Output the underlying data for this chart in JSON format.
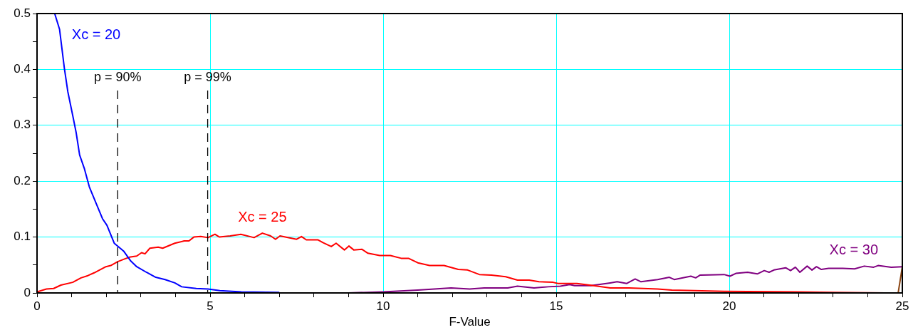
{
  "chart_data": {
    "type": "line",
    "xlabel": "F-Value",
    "xlim": [
      0,
      25
    ],
    "ylim": [
      0,
      0.5
    ],
    "xticks": [
      0,
      {
        "value": 1,
        "label": null
      },
      {
        "value": 2,
        "label": null
      },
      {
        "value": 3,
        "label": null
      },
      {
        "value": 4,
        "label": null
      },
      5,
      {
        "value": 6,
        "label": null
      },
      {
        "value": 7,
        "label": null
      },
      {
        "value": 8,
        "label": null
      },
      {
        "value": 9,
        "label": null
      },
      10,
      {
        "value": 11,
        "label": null
      },
      {
        "value": 12,
        "label": null
      },
      {
        "value": 13,
        "label": null
      },
      {
        "value": 14,
        "label": null
      },
      15,
      {
        "value": 16,
        "label": null
      },
      {
        "value": 17,
        "label": null
      },
      {
        "value": 18,
        "label": null
      },
      {
        "value": 19,
        "label": null
      },
      20,
      {
        "value": 21,
        "label": null
      },
      {
        "value": 22,
        "label": null
      },
      {
        "value": 23,
        "label": null
      },
      {
        "value": 24,
        "label": null
      },
      25
    ],
    "yticks": [
      0,
      {
        "value": 0.05,
        "label": null
      },
      0.1,
      {
        "value": 0.15,
        "label": null
      },
      0.2,
      {
        "value": 0.25,
        "label": null
      },
      0.3,
      {
        "value": 0.35,
        "label": null
      },
      0.4,
      {
        "value": 0.45,
        "label": null
      },
      0.5
    ],
    "grid": true,
    "legend": false,
    "marker": "none",
    "line_style": "solid",
    "ref_lines": [
      {
        "axis": "x",
        "value": 2.33,
        "color": "#000000",
        "line_style": "dashed"
      },
      {
        "axis": "x",
        "value": 4.93,
        "color": "#000000",
        "line_style": "dashed"
      }
    ],
    "annotations": [
      "p = 90%",
      "p = 99%"
    ],
    "series": [
      {
        "name": "Xc = 20",
        "color": "#0000ff",
        "x": [
          0.51,
          0.65,
          0.79,
          0.89,
          1.03,
          1.13,
          1.23,
          1.37,
          1.51,
          1.71,
          1.89,
          2.02,
          2.23,
          2.5,
          2.71,
          2.88,
          3.16,
          3.43,
          3.7,
          3.98,
          4.18,
          4.6,
          4.94,
          5.28,
          5.9,
          7
        ],
        "values": [
          0.5,
          0.472,
          0.402,
          0.36,
          0.318,
          0.287,
          0.247,
          0.222,
          0.19,
          0.16,
          0.133,
          0.121,
          0.089,
          0.075,
          0.057,
          0.047,
          0.037,
          0.028,
          0.024,
          0.018,
          0.011,
          0.008,
          0.007,
          0.004,
          0.002,
          0.001
        ]
      },
      {
        "name": "Xc = 25",
        "color": "#ff0000",
        "x": [
          0,
          0.27,
          0.48,
          0.69,
          1.03,
          1.27,
          1.47,
          1.65,
          1.99,
          2.13,
          2.33,
          2.54,
          2.67,
          2.88,
          3.02,
          3.12,
          3.26,
          3.5,
          3.63,
          3.98,
          4.25,
          4.39,
          4.53,
          4.73,
          4.94,
          5.14,
          5.27,
          5.58,
          5.89,
          6.27,
          6.51,
          6.75,
          6.89,
          7.02,
          7.5,
          7.64,
          7.78,
          8.12,
          8.26,
          8.5,
          8.64,
          8.88,
          9.01,
          9.15,
          9.39,
          9.56,
          9.9,
          10.21,
          10.52,
          10.73,
          11,
          11.34,
          11.76,
          12.17,
          12.44,
          12.78,
          13.13,
          13.54,
          13.88,
          14.22,
          14.5,
          14.91,
          15.05,
          15.6,
          16.08,
          16.56,
          17.1,
          17.93,
          18.34,
          19.85,
          21.9,
          23,
          24.5
        ],
        "values": [
          0.002,
          0.007,
          0.008,
          0.014,
          0.019,
          0.027,
          0.031,
          0.036,
          0.047,
          0.049,
          0.056,
          0.061,
          0.064,
          0.066,
          0.072,
          0.07,
          0.08,
          0.082,
          0.08,
          0.089,
          0.093,
          0.093,
          0.1,
          0.101,
          0.099,
          0.105,
          0.1,
          0.102,
          0.105,
          0.099,
          0.107,
          0.102,
          0.096,
          0.102,
          0.096,
          0.101,
          0.095,
          0.095,
          0.09,
          0.083,
          0.089,
          0.077,
          0.084,
          0.077,
          0.078,
          0.071,
          0.067,
          0.067,
          0.062,
          0.062,
          0.054,
          0.049,
          0.049,
          0.042,
          0.041,
          0.033,
          0.032,
          0.029,
          0.023,
          0.023,
          0.02,
          0.019,
          0.017,
          0.017,
          0.013,
          0.009,
          0.009,
          0.007,
          0.005,
          0.003,
          0.002,
          0.001,
          0
        ]
      },
      {
        "name": "Xc = 30",
        "color": "#800080",
        "x": [
          9,
          10,
          11,
          11.96,
          12.5,
          12.92,
          13.6,
          13.88,
          14.36,
          14.77,
          15.12,
          15.39,
          15.53,
          16,
          16.56,
          16.76,
          17.04,
          17.28,
          17.45,
          17.93,
          18.27,
          18.41,
          18.89,
          19.03,
          19.16,
          19.85,
          20.02,
          20.19,
          20.53,
          20.81,
          21.01,
          21.15,
          21.29,
          21.63,
          21.77,
          21.91,
          22.04,
          22.25,
          22.39,
          22.52,
          22.66,
          22.87,
          23.28,
          23.62,
          23.9,
          24.17,
          24.3,
          24.68,
          25
        ],
        "values": [
          0,
          0.002,
          0.005,
          0.009,
          0.007,
          0.009,
          0.009,
          0.012,
          0.009,
          0.011,
          0.012,
          0.015,
          0.013,
          0.013,
          0.018,
          0.02,
          0.017,
          0.025,
          0.02,
          0.024,
          0.028,
          0.024,
          0.03,
          0.027,
          0.032,
          0.033,
          0.03,
          0.035,
          0.037,
          0.034,
          0.04,
          0.037,
          0.041,
          0.045,
          0.04,
          0.046,
          0.037,
          0.048,
          0.041,
          0.047,
          0.042,
          0.044,
          0.044,
          0.043,
          0.048,
          0.046,
          0.049,
          0.046,
          0.047
        ]
      },
      {
        "color": "#8b4513",
        "x": [
          24.88,
          25
        ],
        "values": [
          0,
          0.047
        ]
      }
    ]
  }
}
